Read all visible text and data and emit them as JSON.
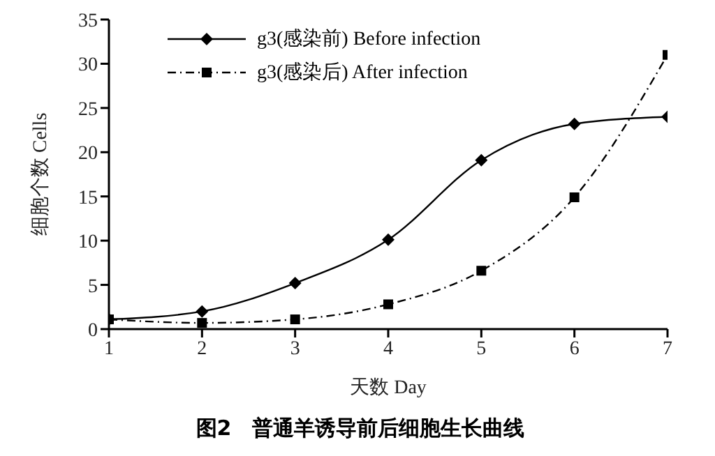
{
  "chart_data": {
    "type": "line",
    "title": "图2　普通羊诱导前后细胞生长曲线",
    "xlabel": "天数 Day",
    "ylabel": "细胞个数 Cells",
    "x": [
      1,
      2,
      3,
      4,
      5,
      6,
      7
    ],
    "series": [
      {
        "name": "g3(感染前) Before infection",
        "color": "#000000",
        "marker": "diamond",
        "line_style": "solid",
        "values": [
          1.1,
          2,
          5.2,
          10.1,
          19.1,
          23.2,
          24
        ]
      },
      {
        "name": "g3(感染后) After infection",
        "color": "#000000",
        "marker": "square",
        "line_style": "dashed",
        "values": [
          1.1,
          0.7,
          1.1,
          2.8,
          6.6,
          14.9,
          31
        ]
      }
    ],
    "xlim": [
      1,
      7
    ],
    "xticks": [
      1,
      2,
      3,
      4,
      5,
      6,
      7
    ],
    "ylim": [
      0,
      35
    ],
    "yticks": [
      0,
      5,
      10,
      15,
      20,
      25,
      30,
      35
    ],
    "grid": false,
    "legend": "top left"
  }
}
